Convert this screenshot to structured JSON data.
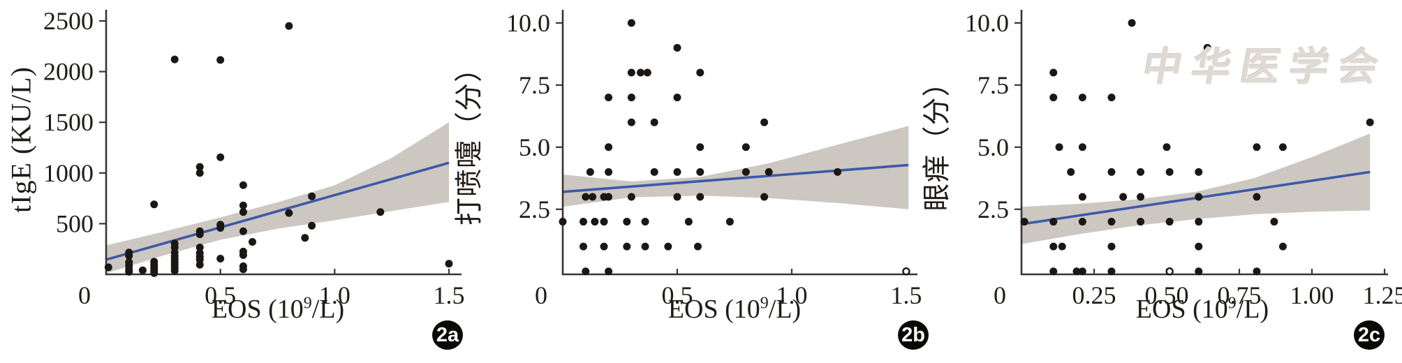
{
  "watermark": {
    "text": "中华医学会",
    "meaning": "Chinese Medical Association seal",
    "color": "#dcd7d0"
  },
  "style_colors": {
    "point": "#1b1715",
    "regression_line": "#3d59a9",
    "confidence_band": "#cdc7c1",
    "axis": "#3a3432"
  },
  "chart_data": [
    {
      "id": "2a",
      "badge": "2a",
      "type": "scatter",
      "title": "",
      "xlabel": {
        "pre": "EOS (10",
        "sup": "9",
        "post": "/L)"
      },
      "ylabel": "tIgE (KU/L)",
      "xlim": [
        0,
        1.555
      ],
      "ylim": [
        0,
        2610
      ],
      "x_ticks": [
        0,
        0.5,
        1.0,
        1.5
      ],
      "x_tick_labels": [
        "0",
        "0.5",
        "1.0",
        "1.5"
      ],
      "y_ticks": [
        500,
        1000,
        1500,
        2000,
        2500
      ],
      "y_tick_labels": [
        "500",
        "1000",
        "1500",
        "2000",
        "2500"
      ],
      "grid": false,
      "points": [
        [
          0.01,
          70
        ],
        [
          0.1,
          215
        ],
        [
          0.1,
          183
        ],
        [
          0.1,
          120
        ],
        [
          0.1,
          85
        ],
        [
          0.1,
          50
        ],
        [
          0.1,
          25
        ],
        [
          0.16,
          40
        ],
        [
          0.21,
          690
        ],
        [
          0.21,
          125
        ],
        [
          0.21,
          95
        ],
        [
          0.21,
          65
        ],
        [
          0.21,
          35
        ],
        [
          0.21,
          12
        ],
        [
          0.3,
          2120
        ],
        [
          0.3,
          305
        ],
        [
          0.3,
          265
        ],
        [
          0.3,
          215
        ],
        [
          0.3,
          180
        ],
        [
          0.3,
          150
        ],
        [
          0.3,
          120
        ],
        [
          0.3,
          95
        ],
        [
          0.3,
          65
        ],
        [
          0.3,
          35
        ],
        [
          0.41,
          1060
        ],
        [
          0.41,
          1000
        ],
        [
          0.41,
          425
        ],
        [
          0.41,
          395
        ],
        [
          0.41,
          265
        ],
        [
          0.41,
          210
        ],
        [
          0.41,
          175
        ],
        [
          0.41,
          145
        ],
        [
          0.41,
          95
        ],
        [
          0.5,
          2115
        ],
        [
          0.5,
          1155
        ],
        [
          0.5,
          490
        ],
        [
          0.5,
          458
        ],
        [
          0.5,
          155
        ],
        [
          0.6,
          880
        ],
        [
          0.6,
          680
        ],
        [
          0.6,
          615
        ],
        [
          0.6,
          425
        ],
        [
          0.6,
          225
        ],
        [
          0.6,
          190
        ],
        [
          0.6,
          80
        ],
        [
          0.6,
          50
        ],
        [
          0.64,
          320
        ],
        [
          0.8,
          2450
        ],
        [
          0.8,
          605
        ],
        [
          0.87,
          360
        ],
        [
          0.9,
          770
        ],
        [
          0.9,
          480
        ],
        [
          1.2,
          615
        ],
        [
          1.5,
          105
        ]
      ],
      "open_points": [],
      "regression": {
        "x": [
          0,
          1.5
        ],
        "y": [
          145,
          1100
        ]
      },
      "band": {
        "x": [
          0,
          0.25,
          0.5,
          0.75,
          1.0,
          1.25,
          1.5
        ],
        "upper": [
          286,
          420,
          562,
          710,
          879,
          1150,
          1500
        ],
        "lower": [
          10,
          185,
          341,
          450,
          534,
          625,
          714
        ]
      }
    },
    {
      "id": "2b",
      "badge": "2b",
      "type": "scatter",
      "title": "",
      "xlabel": {
        "pre": "EOS (10",
        "sup": "9",
        "post": "/L)"
      },
      "ylabel": "打喷嚏（分）",
      "xlim": [
        0,
        1.549
      ],
      "ylim": [
        -0.12,
        10.53
      ],
      "x_ticks": [
        0,
        0.5,
        1.0,
        1.5
      ],
      "x_tick_labels": [
        "0",
        "0.5",
        "1.0",
        "1.5"
      ],
      "y_ticks": [
        2.5,
        5.0,
        7.5,
        10.0
      ],
      "y_tick_labels": [
        "2.5",
        "5.0",
        "7.5",
        "10.0"
      ],
      "grid": false,
      "points": [
        [
          0.3,
          10
        ],
        [
          0.5,
          9
        ],
        [
          0.3,
          8
        ],
        [
          0.34,
          8
        ],
        [
          0.37,
          8
        ],
        [
          0.6,
          8
        ],
        [
          0.2,
          7
        ],
        [
          0.3,
          7
        ],
        [
          0.5,
          7
        ],
        [
          0.3,
          6
        ],
        [
          0.4,
          6
        ],
        [
          0.88,
          6
        ],
        [
          0.2,
          5
        ],
        [
          0.6,
          5
        ],
        [
          0.8,
          5
        ],
        [
          0.12,
          4
        ],
        [
          0.2,
          4
        ],
        [
          0.4,
          4
        ],
        [
          0.5,
          4
        ],
        [
          0.6,
          4
        ],
        [
          0.8,
          4
        ],
        [
          0.9,
          4
        ],
        [
          1.2,
          4
        ],
        [
          0.1,
          3
        ],
        [
          0.13,
          3
        ],
        [
          0.18,
          3
        ],
        [
          0.2,
          3
        ],
        [
          0.3,
          3
        ],
        [
          0.5,
          3
        ],
        [
          0.6,
          3
        ],
        [
          0.88,
          3
        ],
        [
          0.0,
          2
        ],
        [
          0.09,
          2
        ],
        [
          0.14,
          2
        ],
        [
          0.18,
          2
        ],
        [
          0.28,
          2
        ],
        [
          0.36,
          2
        ],
        [
          0.55,
          2
        ],
        [
          0.73,
          2
        ],
        [
          0.09,
          1
        ],
        [
          0.18,
          1
        ],
        [
          0.28,
          1
        ],
        [
          0.36,
          1
        ],
        [
          0.46,
          1
        ],
        [
          0.59,
          1
        ],
        [
          0.1,
          0
        ],
        [
          0.2,
          0
        ]
      ],
      "open_points": [
        [
          1.5,
          0
        ]
      ],
      "regression": {
        "x": [
          0,
          1.51
        ],
        "y": [
          3.2,
          4.28
        ]
      },
      "band": {
        "x": [
          0,
          0.3,
          0.6,
          0.9,
          1.2,
          1.51
        ],
        "upper": [
          3.9,
          3.62,
          3.8,
          4.35,
          5.1,
          5.85
        ],
        "lower": [
          2.6,
          2.98,
          3.05,
          2.95,
          2.75,
          2.5
        ]
      }
    },
    {
      "id": "2c",
      "badge": "2c",
      "type": "scatter",
      "title": "",
      "xlabel": {
        "pre": "EOS (10",
        "sup": "9",
        "post": "/L)"
      },
      "ylabel": "眼痒（分）",
      "xlim": [
        0,
        1.262
      ],
      "ylim": [
        -0.12,
        10.53
      ],
      "x_ticks": [
        0,
        0.25,
        0.5,
        0.75,
        1.0,
        1.25
      ],
      "x_tick_labels": [
        "0",
        "0.25",
        "0.50",
        "0.75",
        "1.00",
        "1.25"
      ],
      "y_ticks": [
        2.5,
        5.0,
        7.5,
        10.0
      ],
      "y_tick_labels": [
        "2.5",
        "5.0",
        "7.5",
        "10.0"
      ],
      "grid": false,
      "points": [
        [
          0.38,
          10
        ],
        [
          0.64,
          9
        ],
        [
          0.11,
          8
        ],
        [
          0.11,
          7
        ],
        [
          0.21,
          7
        ],
        [
          0.31,
          7
        ],
        [
          1.2,
          6
        ],
        [
          0.13,
          5
        ],
        [
          0.21,
          5
        ],
        [
          0.5,
          5
        ],
        [
          0.81,
          5
        ],
        [
          0.9,
          5
        ],
        [
          0.17,
          4
        ],
        [
          0.31,
          4
        ],
        [
          0.41,
          4
        ],
        [
          0.51,
          4
        ],
        [
          0.61,
          4
        ],
        [
          0.21,
          3
        ],
        [
          0.35,
          3
        ],
        [
          0.41,
          3
        ],
        [
          0.61,
          3
        ],
        [
          0.81,
          3
        ],
        [
          0.01,
          2
        ],
        [
          0.11,
          2
        ],
        [
          0.21,
          2
        ],
        [
          0.31,
          2
        ],
        [
          0.41,
          2
        ],
        [
          0.51,
          2
        ],
        [
          0.61,
          2
        ],
        [
          0.87,
          2
        ],
        [
          0.11,
          1
        ],
        [
          0.14,
          1
        ],
        [
          0.31,
          1
        ],
        [
          0.61,
          1
        ],
        [
          0.9,
          1
        ],
        [
          0.11,
          0
        ],
        [
          0.19,
          0
        ],
        [
          0.21,
          0
        ],
        [
          0.31,
          0
        ],
        [
          0.61,
          0
        ],
        [
          0.81,
          0
        ]
      ],
      "open_points": [
        [
          0.51,
          0
        ]
      ],
      "regression": {
        "x": [
          0,
          1.2
        ],
        "y": [
          1.9,
          4.0
        ]
      },
      "band": {
        "x": [
          0,
          0.2,
          0.4,
          0.6,
          0.8,
          1.0,
          1.2
        ],
        "upper": [
          2.6,
          2.72,
          2.9,
          3.2,
          3.75,
          4.6,
          5.55
        ],
        "lower": [
          1.1,
          1.5,
          1.85,
          2.1,
          2.3,
          2.4,
          2.45
        ]
      }
    }
  ]
}
